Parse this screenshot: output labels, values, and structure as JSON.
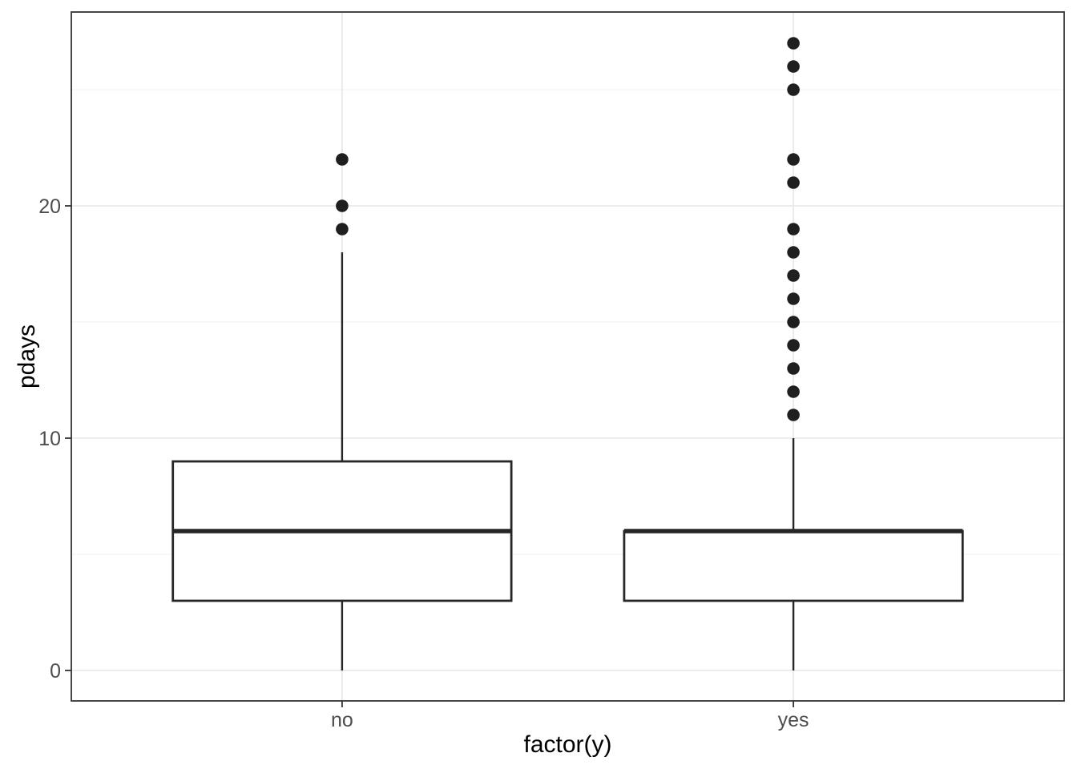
{
  "figure": {
    "background": "#FFFFFF"
  },
  "chart_data": {
    "type": "boxplot",
    "title": "",
    "xlabel": "factor(y)",
    "ylabel": "pdays",
    "categories": [
      "no",
      "yes"
    ],
    "legend": "none",
    "y_axis": {
      "ticks": [
        0,
        10,
        20
      ],
      "tick_labels": [
        "0",
        "10",
        "20"
      ],
      "minor_gridlines": [
        5,
        15,
        25
      ],
      "range": [
        -1.35,
        28.35
      ]
    },
    "x_axis": {
      "grid": "major gridline at each category, no minor"
    },
    "series": [
      {
        "category": "no",
        "whisker_low": 0,
        "q1": 3,
        "median": 6,
        "q3": 9,
        "whisker_high": 18,
        "outliers": [
          19,
          20,
          22
        ]
      },
      {
        "category": "yes",
        "whisker_low": 0,
        "q1": 3,
        "median": 6,
        "q3": 6,
        "whisker_high": 10,
        "outliers": [
          11,
          12,
          13,
          14,
          15,
          16,
          17,
          18,
          19,
          21,
          22,
          25,
          26,
          27
        ]
      }
    ],
    "colors": {
      "panel_background": "#FFFFFF",
      "grid_major": "#E9E9E9",
      "grid_minor": "#F1F1F1",
      "panel_border": "#333333",
      "tick_mark": "#333333",
      "tick_label": "#4D4D4D",
      "axis_title": "#000000",
      "box_stroke": "#262626",
      "box_fill": "#FFFFFF",
      "outlier_fill": "#1F1F1F"
    }
  }
}
